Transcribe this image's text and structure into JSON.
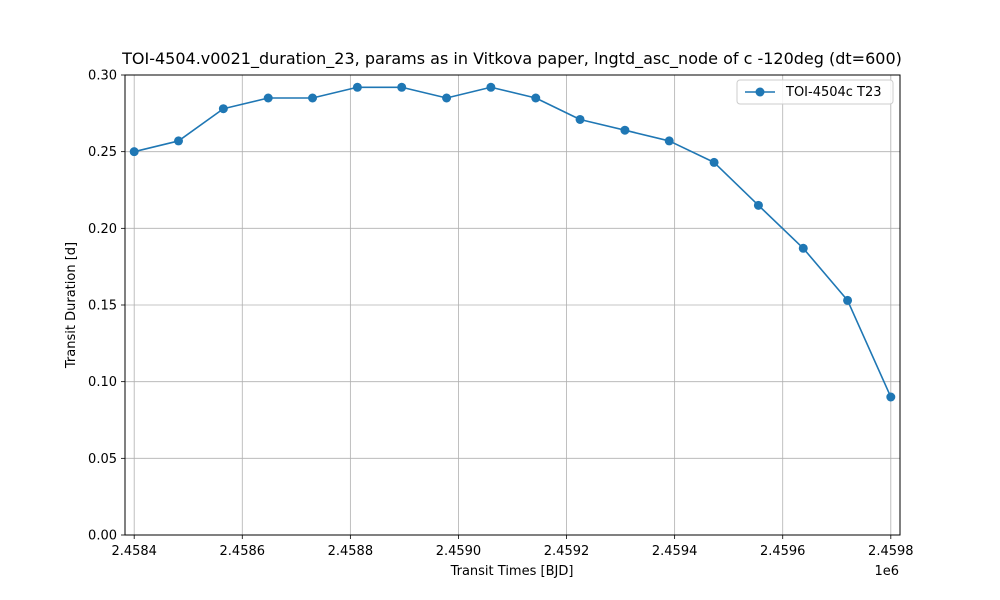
{
  "chart_data": {
    "type": "line",
    "title": "TOI-4504.v0021_duration_23, params as in Vitkova paper, lngtd_asc_node of c -120deg (dt=600)",
    "xlabel": "Transit Times [BJD]",
    "ylabel": "Transit Duration [d]",
    "x_offset_label": "1e6",
    "x_ticks": [
      2.4584,
      2.4586,
      2.4588,
      2.459,
      2.4592,
      2.4594,
      2.4596,
      2.4598
    ],
    "x_tick_labels": [
      "2.4584",
      "2.4586",
      "2.4588",
      "2.4590",
      "2.4592",
      "2.4594",
      "2.4596",
      "2.4598"
    ],
    "y_ticks": [
      0.0,
      0.05,
      0.1,
      0.15,
      0.2,
      0.25,
      0.3
    ],
    "y_tick_labels": [
      "0.00",
      "0.05",
      "0.10",
      "0.15",
      "0.20",
      "0.25",
      "0.30"
    ],
    "xlim": [
      2.458383,
      2.459817
    ],
    "ylim": [
      0.0,
      0.3
    ],
    "grid": true,
    "legend_position": "top-right",
    "series": [
      {
        "name": "TOI-4504c T23",
        "color": "#1f77b4",
        "marker": "circle",
        "x": [
          2.4584,
          2.458482,
          2.458565,
          2.458648,
          2.45873,
          2.458813,
          2.458895,
          2.458978,
          2.45906,
          2.459143,
          2.459225,
          2.459308,
          2.45939,
          2.459473,
          2.459555,
          2.459638,
          2.45972,
          2.4598
        ],
        "y": [
          0.25,
          0.257,
          0.278,
          0.285,
          0.285,
          0.292,
          0.292,
          0.285,
          0.292,
          0.285,
          0.271,
          0.264,
          0.257,
          0.243,
          0.215,
          0.187,
          0.153,
          0.09
        ]
      }
    ]
  }
}
